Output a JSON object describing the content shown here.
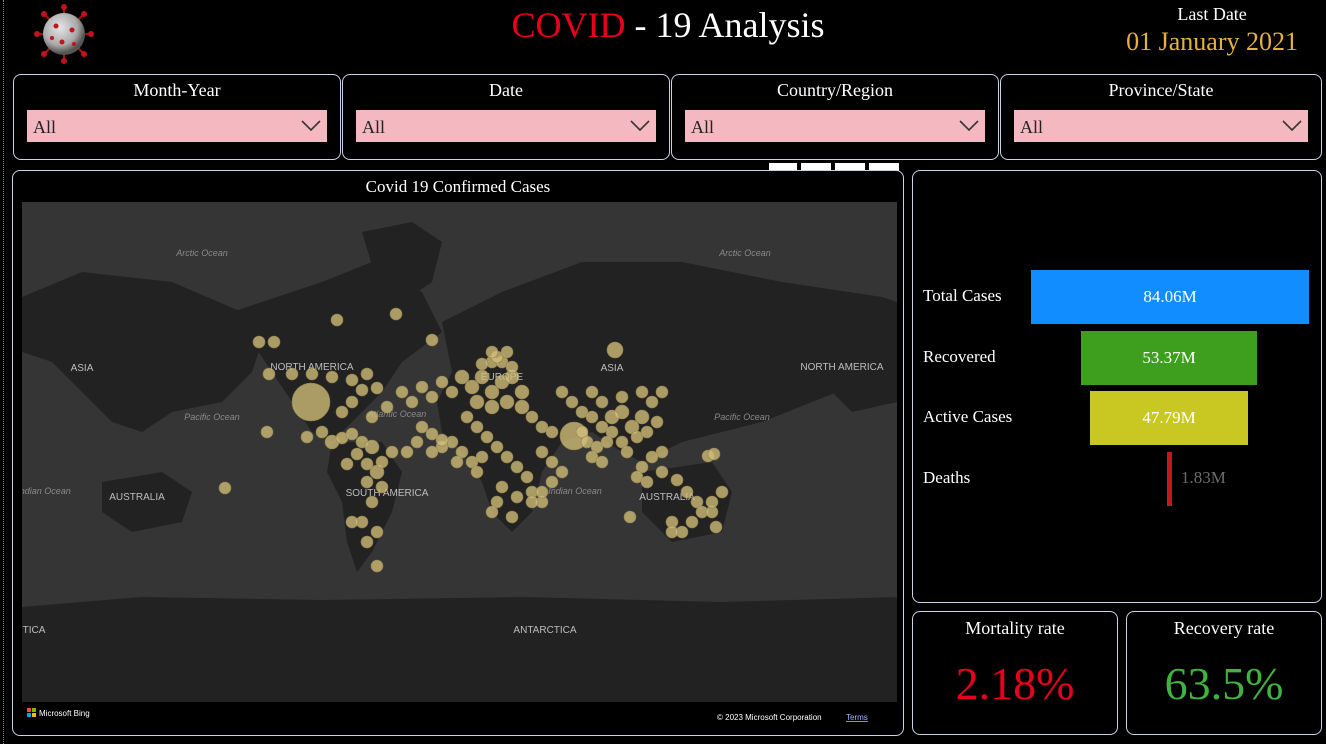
{
  "header": {
    "title_red": "COVID",
    "title_rest": " - 19 Analysis",
    "last_date_label": "Last Date",
    "last_date_value": "01 January 2021"
  },
  "filters": [
    {
      "label": "Month-Year",
      "value": "All"
    },
    {
      "label": "Date",
      "value": "All"
    },
    {
      "label": "Country/Region",
      "value": "All"
    },
    {
      "label": "Province/State",
      "value": "All"
    }
  ],
  "map": {
    "title": "Covid 19 Confirmed Cases",
    "labels": {
      "arctic_left": "Arctic Ocean",
      "arctic_right": "Arctic Ocean",
      "asia_left": "ASIA",
      "north_america": "NORTH AMERICA",
      "europe": "EUROPE",
      "asia_right": "ASIA",
      "north_america_right": "NORTH AMERICA",
      "pacific_left": "Pacific Ocean",
      "atlantic": "Atlantic Ocean",
      "pacific_right": "Pacific Ocean",
      "indian_left": "Indian Ocean",
      "australia_left": "AUSTRALIA",
      "south_america": "SOUTH AMERICA",
      "indian_right": "Indian Ocean",
      "australia_right": "AUSTRALIA",
      "antarctica": "ANTARCTICA",
      "antarctica_left": "TICA"
    },
    "attribution": "© 2023 Microsoft Corporation",
    "terms": "Terms",
    "brand": "Microsoft Bing"
  },
  "funnel": [
    {
      "label": "Total Cases",
      "value": "84.06M",
      "color": "#118dff"
    },
    {
      "label": "Recovered",
      "value": "53.37M",
      "color": "#3d9f1d"
    },
    {
      "label": "Active Cases",
      "value": "47.79M",
      "color": "#c9c823"
    },
    {
      "label": "Deaths",
      "value": "1.83M",
      "color": "#c4161c"
    }
  ],
  "cards": {
    "mortality_label": "Mortality rate",
    "mortality_value": "2.18%",
    "mortality_color": "#e8001c",
    "recovery_label": "Recovery rate",
    "recovery_value": "63.5%",
    "recovery_color": "#3fb33f"
  },
  "icons": {
    "logo": "virus-icon",
    "dropdown": "chevron-down-icon"
  }
}
